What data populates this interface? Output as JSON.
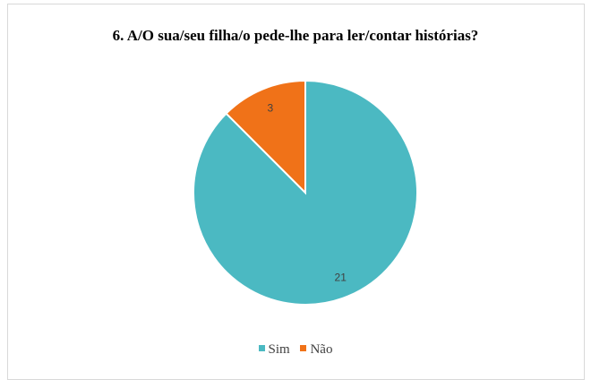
{
  "chart_data": {
    "type": "pie",
    "title": "6. A/O sua/seu filha/o pede-lhe para ler/contar histórias?",
    "categories": [
      "Sim",
      "Não"
    ],
    "values": [
      21,
      3
    ],
    "data_labels": [
      "21",
      "3"
    ],
    "colors": [
      "#4BB9C2",
      "#F07218"
    ],
    "start_angle_deg": 0,
    "direction": "clockwise-from-top",
    "legend": {
      "placement": "bottom",
      "entries": [
        "Sim",
        "Não"
      ]
    }
  }
}
